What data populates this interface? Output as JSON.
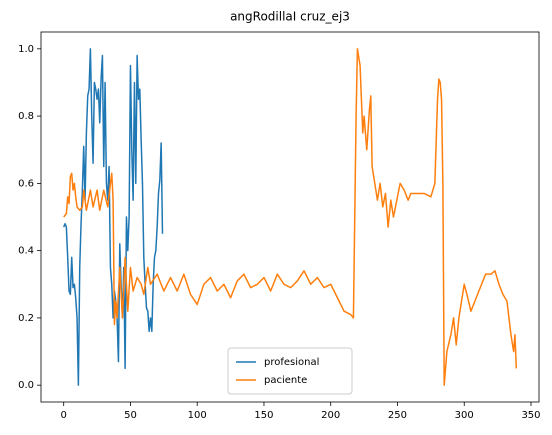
{
  "chart_data": {
    "type": "line",
    "title": "angRodillaI cruz_ej3",
    "xlim": [
      -17,
      356
    ],
    "xticks": [
      0,
      50,
      100,
      150,
      200,
      250,
      300,
      350
    ],
    "ylim": [
      -0.05,
      1.05
    ],
    "yticks": [
      {
        "value": 0,
        "label": "0.0"
      },
      0.2,
      0.4,
      0.6,
      0.8,
      {
        "value": 1,
        "label": "1.0"
      }
    ],
    "grid": false,
    "legend": "lower center",
    "series": [
      {
        "name": "profesional",
        "color": "#1f77b4",
        "values": [
          0.47,
          0.48,
          0.47,
          0.38,
          0.28,
          0.27,
          0.38,
          0.29,
          0.3,
          0.26,
          0.2,
          0.0,
          0.35,
          0.48,
          0.58,
          0.71,
          0.55,
          0.75,
          0.86,
          0.88,
          1.0,
          0.8,
          0.66,
          0.9,
          0.88,
          0.85,
          0.88,
          0.78,
          0.91,
          0.98,
          0.65,
          0.9,
          0.6,
          0.55,
          0.65,
          0.35,
          0.3,
          0.2,
          0.28,
          0.25,
          0.2,
          0.07,
          0.42,
          0.3,
          0.2,
          0.35,
          0.05,
          0.5,
          0.4,
          0.5,
          0.95,
          0.7,
          0.55,
          0.9,
          0.6,
          0.98,
          0.85,
          0.88,
          0.73,
          0.6,
          0.38,
          0.3,
          0.23,
          0.22,
          0.16,
          0.2,
          0.16,
          0.3,
          0.38,
          0.4,
          0.47,
          0.57,
          0.61,
          0.72,
          0.45
        ]
      },
      {
        "name": "paciente",
        "color": "#ff7f0e",
        "x": [
          0,
          2,
          3,
          4,
          5,
          6,
          7,
          8,
          9,
          10,
          12,
          14,
          15,
          17,
          20,
          22,
          25,
          27,
          30,
          33,
          35,
          36,
          37,
          38,
          39,
          40,
          42,
          44,
          46,
          48,
          50,
          52,
          55,
          58,
          60,
          63,
          65,
          70,
          75,
          80,
          85,
          90,
          95,
          100,
          105,
          110,
          115,
          120,
          125,
          130,
          135,
          140,
          145,
          150,
          155,
          160,
          165,
          170,
          175,
          180,
          185,
          190,
          195,
          200,
          205,
          210,
          215,
          217,
          218,
          219,
          220,
          222,
          224,
          225,
          227,
          229,
          230,
          231,
          233,
          235,
          237,
          239,
          241,
          243,
          245,
          247,
          250,
          252,
          255,
          258,
          260,
          265,
          270,
          275,
          278,
          280,
          281,
          282,
          283,
          284,
          285,
          287,
          290,
          292,
          294,
          296,
          298,
          300,
          302,
          305,
          308,
          310,
          313,
          316,
          320,
          323,
          326,
          329,
          332,
          335,
          337,
          338,
          339
        ],
        "values": [
          0.5,
          0.51,
          0.56,
          0.54,
          0.62,
          0.63,
          0.58,
          0.6,
          0.56,
          0.53,
          0.52,
          0.53,
          0.58,
          0.52,
          0.58,
          0.53,
          0.58,
          0.52,
          0.58,
          0.53,
          0.6,
          0.63,
          0.55,
          0.18,
          0.25,
          0.2,
          0.35,
          0.2,
          0.38,
          0.22,
          0.35,
          0.28,
          0.32,
          0.3,
          0.27,
          0.35,
          0.3,
          0.33,
          0.28,
          0.32,
          0.28,
          0.33,
          0.27,
          0.24,
          0.3,
          0.32,
          0.28,
          0.3,
          0.26,
          0.31,
          0.33,
          0.29,
          0.3,
          0.32,
          0.28,
          0.33,
          0.3,
          0.29,
          0.31,
          0.34,
          0.3,
          0.32,
          0.29,
          0.3,
          0.26,
          0.22,
          0.21,
          0.2,
          0.5,
          0.8,
          1.0,
          0.95,
          0.75,
          0.8,
          0.7,
          0.82,
          0.86,
          0.65,
          0.6,
          0.55,
          0.6,
          0.53,
          0.57,
          0.47,
          0.55,
          0.5,
          0.56,
          0.6,
          0.58,
          0.55,
          0.57,
          0.57,
          0.57,
          0.56,
          0.6,
          0.85,
          0.91,
          0.9,
          0.85,
          0.6,
          0.0,
          0.1,
          0.15,
          0.2,
          0.12,
          0.2,
          0.25,
          0.3,
          0.27,
          0.22,
          0.25,
          0.27,
          0.3,
          0.33,
          0.33,
          0.34,
          0.3,
          0.27,
          0.25,
          0.15,
          0.1,
          0.15,
          0.05
        ]
      }
    ]
  }
}
